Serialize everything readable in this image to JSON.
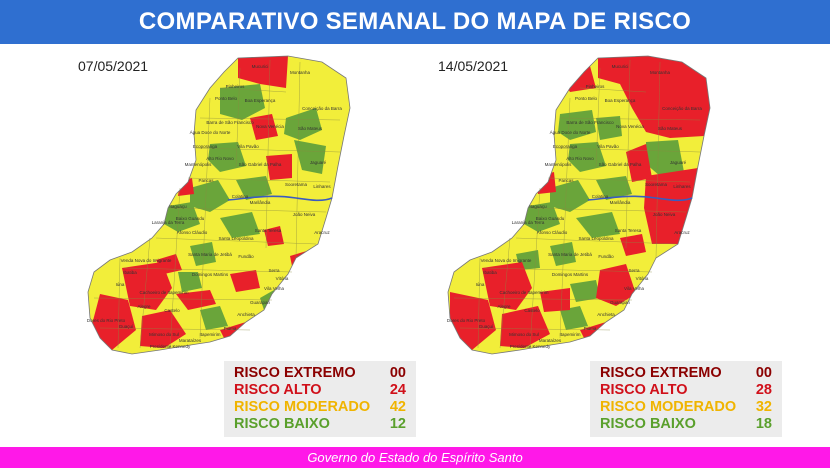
{
  "title": "COMPARATIVO SEMANAL DO MAPA DE RISCO",
  "footer": "Governo do Estado do Espírito Santo",
  "colors": {
    "title_bar": "#2f6fd0",
    "footer_bar": "#ff18e8",
    "extremo": "#8b0000",
    "alto": "#e8202a",
    "moderado": "#f2ee3a",
    "baixo": "#6aa53a"
  },
  "maps": [
    {
      "date": "07/05/2021",
      "legend": [
        {
          "label": "RISCO EXTREMO",
          "value": "00",
          "color": "#8b0000"
        },
        {
          "label": "RISCO ALTO",
          "value": "24",
          "color": "#d0101a"
        },
        {
          "label": "RISCO MODERADO",
          "value": "42",
          "color": "#f0b400"
        },
        {
          "label": "RISCO BAIXO",
          "value": "12",
          "color": "#5aa02c"
        }
      ],
      "labels": [
        "Mucurici",
        "Montanha",
        "Pinheiros",
        "Ponto Belo",
        "Boa Esperança",
        "Conceição da Barra",
        "São Mateus",
        "Nova Venécia",
        "Barra de São Francisco",
        "Água Doce do Norte",
        "Vila Pavão",
        "Ecoporanga",
        "Mantenópolis",
        "Alto Rio Novo",
        "São Gabriel da Palha",
        "Jaguaré",
        "Sooretama",
        "Linhares",
        "Pancas",
        "Colatina",
        "Marilândia",
        "João Neiva",
        "Aracruz",
        "Santa Teresa",
        "Fundão",
        "Serra",
        "Vitória",
        "Vila Velha",
        "Guarapari",
        "Anchieta",
        "Piúma",
        "Itapemirim",
        "Marataízes",
        "Presidente Kennedy",
        "Mimoso do Sul",
        "Castelo",
        "Alegre",
        "Guaçuí",
        "Dores do Rio Preto",
        "Iúna",
        "Ibatiba",
        "Venda Nova do Imigrante",
        "Domingos Martins",
        "Santa Maria de Jetibá",
        "Santa Leopoldina",
        "Afonso Cláudio",
        "Laranja da Terra",
        "Itaguaçu",
        "Baixo Guandu",
        "Cachoeiro de Itapemirim"
      ]
    },
    {
      "date": "14/05/2021",
      "legend": [
        {
          "label": "RISCO EXTREMO",
          "value": "00",
          "color": "#8b0000"
        },
        {
          "label": "RISCO ALTO",
          "value": "28",
          "color": "#d0101a"
        },
        {
          "label": "RISCO MODERADO",
          "value": "32",
          "color": "#f0b400"
        },
        {
          "label": "RISCO BAIXO",
          "value": "18",
          "color": "#5aa02c"
        }
      ],
      "labels": [
        "Mucurici",
        "Montanha",
        "Pinheiros",
        "Ponto Belo",
        "Boa Esperança",
        "Conceição da Barra",
        "São Mateus",
        "Nova Venécia",
        "Barra de São Francisco",
        "Água Doce do Norte",
        "Vila Pavão",
        "Ecoporanga",
        "Mantenópolis",
        "Alto Rio Novo",
        "São Gabriel da Palha",
        "Jaguaré",
        "Sooretama",
        "Linhares",
        "Pancas",
        "Colatina",
        "Marilândia",
        "João Neiva",
        "Aracruz",
        "Santa Teresa",
        "Fundão",
        "Serra",
        "Vitória",
        "Vila Velha",
        "Guarapari",
        "Anchieta",
        "Piúma",
        "Itapemirim",
        "Marataízes",
        "Presidente Kennedy",
        "Mimoso do Sul",
        "Castelo",
        "Alegre",
        "Guaçuí",
        "Dores do Rio Preto",
        "Iúna",
        "Ibatiba",
        "Venda Nova do Imigrante",
        "Domingos Martins",
        "Santa Maria de Jetibá",
        "Santa Leopoldina",
        "Afonso Cláudio",
        "Laranja da Terra",
        "Itaguaçu",
        "Baixo Guandu",
        "Cachoeiro de Itapemirim"
      ]
    }
  ]
}
